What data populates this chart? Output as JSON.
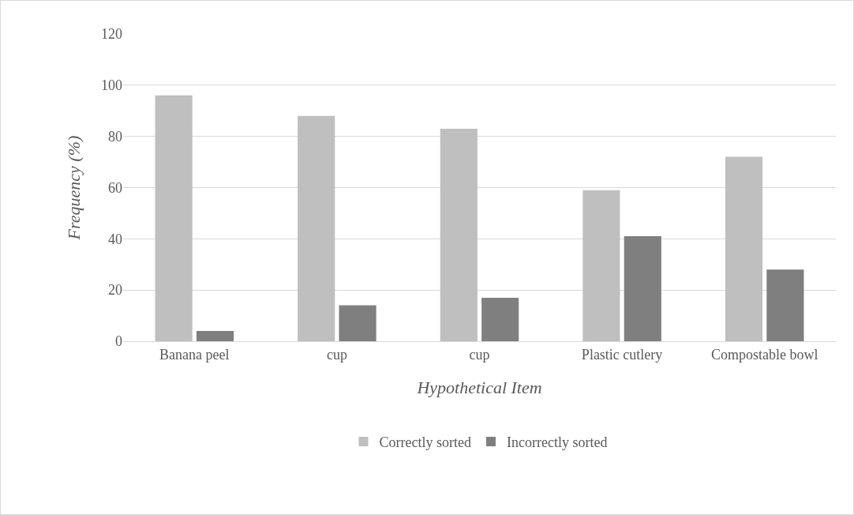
{
  "chart_data": {
    "type": "bar",
    "xlabel": "Hypothetical Item",
    "ylabel": "Frequency (%)",
    "categories": [
      "Banana peel",
      "cup",
      "cup",
      "Plastic cutlery",
      "Compostable bowl"
    ],
    "series": [
      {
        "name": "Correctly sorted",
        "color": "#bfbfbf",
        "values": [
          96,
          88,
          83,
          59,
          72
        ]
      },
      {
        "name": "Incorrectly sorted",
        "color": "#7f7f7f",
        "values": [
          4,
          14,
          17,
          41,
          28
        ]
      }
    ],
    "ylim": [
      0,
      120
    ],
    "yticks": [
      0,
      20,
      40,
      60,
      80,
      100,
      120
    ],
    "grid": "y",
    "legend": "bottom"
  }
}
